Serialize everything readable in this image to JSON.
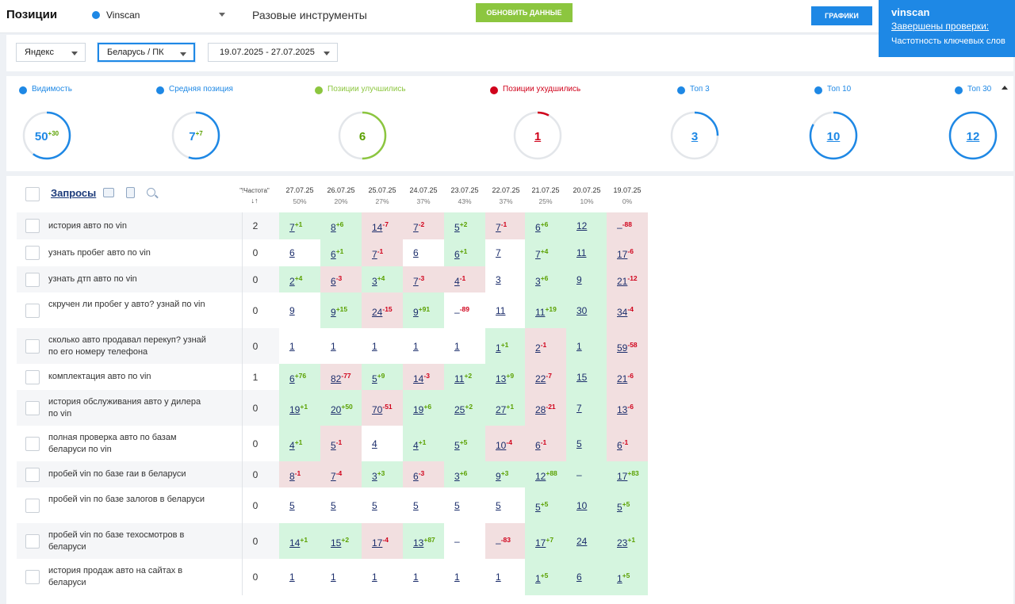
{
  "header": {
    "title": "Позиции",
    "project": "Vinscan",
    "tools_label": "Разовые инструменты",
    "refresh_label": "ОБНОВИТЬ ДАННЫЕ",
    "charts_label": "ГРАФИКИ"
  },
  "notification": {
    "title": "vinscan",
    "link": "Завершены проверки:",
    "text": "Частотность ключевых слов"
  },
  "filters": {
    "engine": "Яндекс",
    "region": "Беларусь / ПК",
    "dates": "19.07.2025 - 27.07.2025"
  },
  "colors": {
    "blue": "#1e88e5",
    "green": "#8cc63f",
    "red": "#d0021b"
  },
  "metrics": [
    {
      "label": "Видимость",
      "value": "50",
      "delta": "+30",
      "color": "#1e88e5",
      "fill": 0.6
    },
    {
      "label": "Средняя позиция",
      "value": "7",
      "delta": "+7",
      "color": "#1e88e5",
      "fill": 0.55
    },
    {
      "label": "Позиции улучшились",
      "value": "6",
      "delta": "",
      "color": "#8cc63f",
      "fill": 0.5
    },
    {
      "label": "Позиции ухудшились",
      "value": "1",
      "delta": "",
      "color": "#d0021b",
      "fill": 0.08
    },
    {
      "label": "Топ 3",
      "value": "3",
      "delta": "",
      "color": "#1e88e5",
      "fill": 0.25
    },
    {
      "label": "Топ 10",
      "value": "10",
      "delta": "",
      "color": "#1e88e5",
      "fill": 0.83
    },
    {
      "label": "Топ 30",
      "value": "12",
      "delta": "",
      "color": "#1e88e5",
      "fill": 1.0
    }
  ],
  "table": {
    "title": "Запросы",
    "freq_header": "\"!Частота\"",
    "freq_sort": "↓↑",
    "dates": [
      {
        "date": "27.07.25",
        "pct": "50%"
      },
      {
        "date": "26.07.25",
        "pct": "20%"
      },
      {
        "date": "25.07.25",
        "pct": "27%"
      },
      {
        "date": "24.07.25",
        "pct": "37%"
      },
      {
        "date": "23.07.25",
        "pct": "43%"
      },
      {
        "date": "22.07.25",
        "pct": "37%"
      },
      {
        "date": "21.07.25",
        "pct": "25%"
      },
      {
        "date": "20.07.25",
        "pct": "10%"
      },
      {
        "date": "19.07.25",
        "pct": "0%"
      }
    ],
    "rows": [
      {
        "query": "история авто по vin",
        "freq": "2",
        "cells": [
          [
            "7",
            "+1",
            "g"
          ],
          [
            "8",
            "+6",
            "g"
          ],
          [
            "14",
            "-7",
            "r"
          ],
          [
            "7",
            "-2",
            "r"
          ],
          [
            "5",
            "+2",
            "g"
          ],
          [
            "7",
            "-1",
            "r"
          ],
          [
            "6",
            "+6",
            "g"
          ],
          [
            "12",
            "",
            "g"
          ],
          [
            "–",
            "-88",
            "r"
          ]
        ]
      },
      {
        "query": "узнать пробег авто по vin",
        "freq": "0",
        "cells": [
          [
            "6",
            "",
            "w"
          ],
          [
            "6",
            "+1",
            "g"
          ],
          [
            "7",
            "-1",
            "r"
          ],
          [
            "6",
            "",
            "w"
          ],
          [
            "6",
            "+1",
            "g"
          ],
          [
            "7",
            "",
            "w"
          ],
          [
            "7",
            "+4",
            "g"
          ],
          [
            "11",
            "",
            "g"
          ],
          [
            "17",
            "-6",
            "r"
          ]
        ]
      },
      {
        "query": "узнать дтп авто по vin",
        "freq": "0",
        "cells": [
          [
            "2",
            "+4",
            "g"
          ],
          [
            "6",
            "-3",
            "r"
          ],
          [
            "3",
            "+4",
            "g"
          ],
          [
            "7",
            "-3",
            "r"
          ],
          [
            "4",
            "-1",
            "r"
          ],
          [
            "3",
            "",
            "w"
          ],
          [
            "3",
            "+6",
            "g"
          ],
          [
            "9",
            "",
            "g"
          ],
          [
            "21",
            "-12",
            "r"
          ]
        ]
      },
      {
        "query": "скручен ли пробег у авто? узнай по vin",
        "freq": "0",
        "cells": [
          [
            "9",
            "",
            "w"
          ],
          [
            "9",
            "+15",
            "g"
          ],
          [
            "24",
            "-15",
            "r"
          ],
          [
            "9",
            "+91",
            "g"
          ],
          [
            "–",
            "-89",
            "w"
          ],
          [
            "11",
            "",
            "w"
          ],
          [
            "11",
            "+19",
            "g"
          ],
          [
            "30",
            "",
            "g"
          ],
          [
            "34",
            "-4",
            "r"
          ]
        ]
      },
      {
        "query": "сколько авто продавал перекуп? узнай по его номеру телефона",
        "freq": "0",
        "cells": [
          [
            "1",
            "",
            "w"
          ],
          [
            "1",
            "",
            "w"
          ],
          [
            "1",
            "",
            "w"
          ],
          [
            "1",
            "",
            "w"
          ],
          [
            "1",
            "",
            "w"
          ],
          [
            "1",
            "+1",
            "g"
          ],
          [
            "2",
            "-1",
            "r"
          ],
          [
            "1",
            "",
            "g"
          ],
          [
            "59",
            "-58",
            "r"
          ]
        ]
      },
      {
        "query": "комплектация авто по vin",
        "freq": "1",
        "cells": [
          [
            "6",
            "+76",
            "g"
          ],
          [
            "82",
            "-77",
            "r"
          ],
          [
            "5",
            "+9",
            "g"
          ],
          [
            "14",
            "-3",
            "r"
          ],
          [
            "11",
            "+2",
            "g"
          ],
          [
            "13",
            "+9",
            "g"
          ],
          [
            "22",
            "-7",
            "r"
          ],
          [
            "15",
            "",
            "g"
          ],
          [
            "21",
            "-6",
            "r"
          ]
        ]
      },
      {
        "query": "история обслуживания авто у дилера по vin",
        "freq": "0",
        "cells": [
          [
            "19",
            "+1",
            "g"
          ],
          [
            "20",
            "+50",
            "g"
          ],
          [
            "70",
            "-51",
            "r"
          ],
          [
            "19",
            "+6",
            "g"
          ],
          [
            "25",
            "+2",
            "g"
          ],
          [
            "27",
            "+1",
            "g"
          ],
          [
            "28",
            "-21",
            "r"
          ],
          [
            "7",
            "",
            "g"
          ],
          [
            "13",
            "-6",
            "r"
          ]
        ]
      },
      {
        "query": "полная проверка авто по базам беларуси по vin",
        "freq": "0",
        "cells": [
          [
            "4",
            "+1",
            "g"
          ],
          [
            "5",
            "-1",
            "r"
          ],
          [
            "4",
            "",
            "w"
          ],
          [
            "4",
            "+1",
            "g"
          ],
          [
            "5",
            "+5",
            "g"
          ],
          [
            "10",
            "-4",
            "r"
          ],
          [
            "6",
            "-1",
            "r"
          ],
          [
            "5",
            "",
            "g"
          ],
          [
            "6",
            "-1",
            "r"
          ]
        ]
      },
      {
        "query": "пробей vin по базе гаи в беларуси",
        "freq": "0",
        "cells": [
          [
            "8",
            "-1",
            "r"
          ],
          [
            "7",
            "-4",
            "r"
          ],
          [
            "3",
            "+3",
            "g"
          ],
          [
            "6",
            "-3",
            "r"
          ],
          [
            "3",
            "+6",
            "g"
          ],
          [
            "9",
            "+3",
            "g"
          ],
          [
            "12",
            "+88",
            "g"
          ],
          [
            "–",
            "",
            "g"
          ],
          [
            "17",
            "+83",
            "g"
          ]
        ]
      },
      {
        "query": "пробей vin по базе залогов в беларуси",
        "freq": "0",
        "cells": [
          [
            "5",
            "",
            "w"
          ],
          [
            "5",
            "",
            "w"
          ],
          [
            "5",
            "",
            "w"
          ],
          [
            "5",
            "",
            "w"
          ],
          [
            "5",
            "",
            "w"
          ],
          [
            "5",
            "",
            "w"
          ],
          [
            "5",
            "+5",
            "g"
          ],
          [
            "10",
            "",
            "g"
          ],
          [
            "5",
            "+5",
            "g"
          ]
        ]
      },
      {
        "query": "пробей vin по базе техосмотров в беларуси",
        "freq": "0",
        "cells": [
          [
            "14",
            "+1",
            "g"
          ],
          [
            "15",
            "+2",
            "g"
          ],
          [
            "17",
            "-4",
            "r"
          ],
          [
            "13",
            "+87",
            "g"
          ],
          [
            "–",
            "",
            "w"
          ],
          [
            "–",
            "-83",
            "r"
          ],
          [
            "17",
            "+7",
            "g"
          ],
          [
            "24",
            "",
            "g"
          ],
          [
            "23",
            "+1",
            "g"
          ]
        ]
      },
      {
        "query": "история продаж авто на сайтах в беларуси",
        "freq": "0",
        "cells": [
          [
            "1",
            "",
            "w"
          ],
          [
            "1",
            "",
            "w"
          ],
          [
            "1",
            "",
            "w"
          ],
          [
            "1",
            "",
            "w"
          ],
          [
            "1",
            "",
            "w"
          ],
          [
            "1",
            "",
            "w"
          ],
          [
            "1",
            "+5",
            "g"
          ],
          [
            "6",
            "",
            "g"
          ],
          [
            "1",
            "+5",
            "g"
          ]
        ]
      }
    ]
  }
}
